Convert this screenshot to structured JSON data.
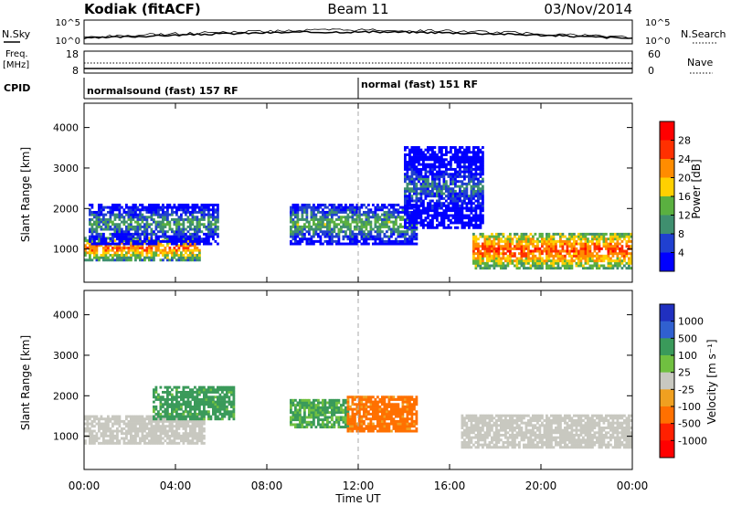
{
  "header": {
    "station": "Kodiak (fitACF)",
    "beam": "Beam 11",
    "date": "03/Nov/2014"
  },
  "strip_labels": {
    "nsky": "N.Sky",
    "nsky_top": "10^5",
    "nsky_bottom": "10^0",
    "nsearch": "N.Search",
    "nsearch_top": "10^5",
    "nsearch_bottom": "10^0",
    "freq_line1": "Freq.",
    "freq_line2": "[MHz]",
    "freq_top": "18",
    "freq_bottom": "8",
    "nave": "Nave",
    "nave_top": "60",
    "nave_bottom": "0",
    "cpid": "CPID",
    "cpid_mode1": "normalsound (fast) 157 RF",
    "cpid_mode2": "normal (fast) 151 RF"
  },
  "colors": {
    "power_scale": [
      "#0000ff",
      "#2040d0",
      "#3f8f6f",
      "#5ab040",
      "#ffd000",
      "#ff8c00",
      "#ff3000",
      "#ff0000"
    ],
    "velocity_scale": [
      "#2030c0",
      "#3060d0",
      "#3a9a5a",
      "#70c040",
      "#c8c8c0",
      "#f0a020",
      "#ff7000",
      "#ff2000",
      "#ff0000"
    ],
    "ground_scatter": "#c8c8c0"
  },
  "chart_data": [
    {
      "type": "heatmap",
      "panel": "power",
      "ylabel": "Slant Range [km]",
      "xlabel": "Time UT",
      "x_ticks": [
        "00:00",
        "04:00",
        "08:00",
        "12:00",
        "16:00",
        "20:00",
        "00:00"
      ],
      "y_ticks": [
        1000,
        2000,
        3000,
        4000
      ],
      "xlim": [
        0,
        24
      ],
      "ylim": [
        180,
        4600
      ],
      "colorbar": {
        "label": "Power [dB]",
        "ticks": [
          4,
          8,
          12,
          16,
          20,
          24,
          28
        ]
      },
      "regions": [
        {
          "name": "early-band",
          "t0": 0.0,
          "t1": 5.0,
          "r0": 700,
          "r1": 1300,
          "level": 24
        },
        {
          "name": "early-upper",
          "t0": 0.2,
          "t1": 5.8,
          "r0": 1100,
          "r1": 2100,
          "level": 12
        },
        {
          "name": "midday",
          "t0": 9.0,
          "t1": 14.5,
          "r0": 1100,
          "r1": 2100,
          "level": 14
        },
        {
          "name": "night-band",
          "t0": 17.0,
          "t1": 24.0,
          "r0": 500,
          "r1": 1400,
          "level": 26
        },
        {
          "name": "arc",
          "t0": 14.0,
          "t1": 17.5,
          "r0": 1500,
          "r1": 3500,
          "level": 8
        }
      ]
    },
    {
      "type": "heatmap",
      "panel": "velocity",
      "ylabel": "Slant Range [km]",
      "xlabel": "Time UT",
      "x_ticks": [
        "00:00",
        "04:00",
        "08:00",
        "12:00",
        "16:00",
        "20:00",
        "00:00"
      ],
      "y_ticks": [
        1000,
        2000,
        3000,
        4000
      ],
      "xlim": [
        0,
        24
      ],
      "ylim": [
        180,
        4600
      ],
      "colorbar": {
        "label": "Velocity [m s⁻¹]",
        "ticks": [
          "1000",
          "500",
          "100",
          "25",
          "-25",
          "-100",
          "-500",
          "-1000"
        ]
      },
      "regions": [
        {
          "name": "ground-early",
          "t0": 0.0,
          "t1": 5.2,
          "r0": 800,
          "r1": 1500,
          "value": 0
        },
        {
          "name": "green-early",
          "t0": 3.0,
          "t1": 6.5,
          "r0": 1400,
          "r1": 2200,
          "value": 150
        },
        {
          "name": "green-midday",
          "t0": 9.0,
          "t1": 11.5,
          "r0": 1200,
          "r1": 1900,
          "value": 120
        },
        {
          "name": "orange-midday",
          "t0": 11.5,
          "t1": 14.5,
          "r0": 1100,
          "r1": 2000,
          "value": -150
        },
        {
          "name": "ground-night",
          "t0": 16.5,
          "t1": 24.0,
          "r0": 700,
          "r1": 1500,
          "value": 0
        }
      ]
    }
  ]
}
